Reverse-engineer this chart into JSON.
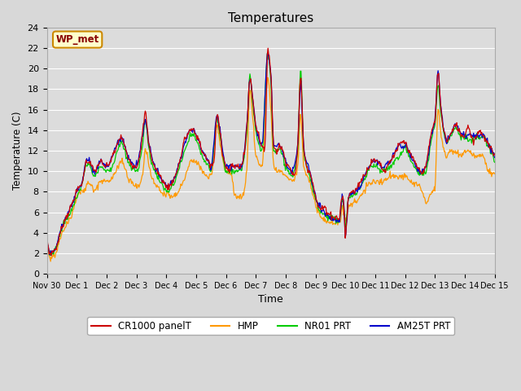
{
  "title": "Temperatures",
  "xlabel": "Time",
  "ylabel": "Temperature (C)",
  "ylim": [
    0,
    24
  ],
  "yticks": [
    0,
    2,
    4,
    6,
    8,
    10,
    12,
    14,
    16,
    18,
    20,
    22,
    24
  ],
  "series_colors": {
    "CR1000 panelT": "#cc0000",
    "HMP": "#ff9900",
    "NR01 PRT": "#00cc00",
    "AM25T PRT": "#0000cc"
  },
  "legend_label": "WP_met",
  "legend_box_color": "#ffffcc",
  "legend_box_edge": "#cc8800",
  "legend_text_color": "#880000",
  "fig_bg": "#d8d8d8",
  "plot_bg": "#dcdcdc",
  "grid_color": "#ffffff",
  "legend_bg": "#f0f0f0"
}
